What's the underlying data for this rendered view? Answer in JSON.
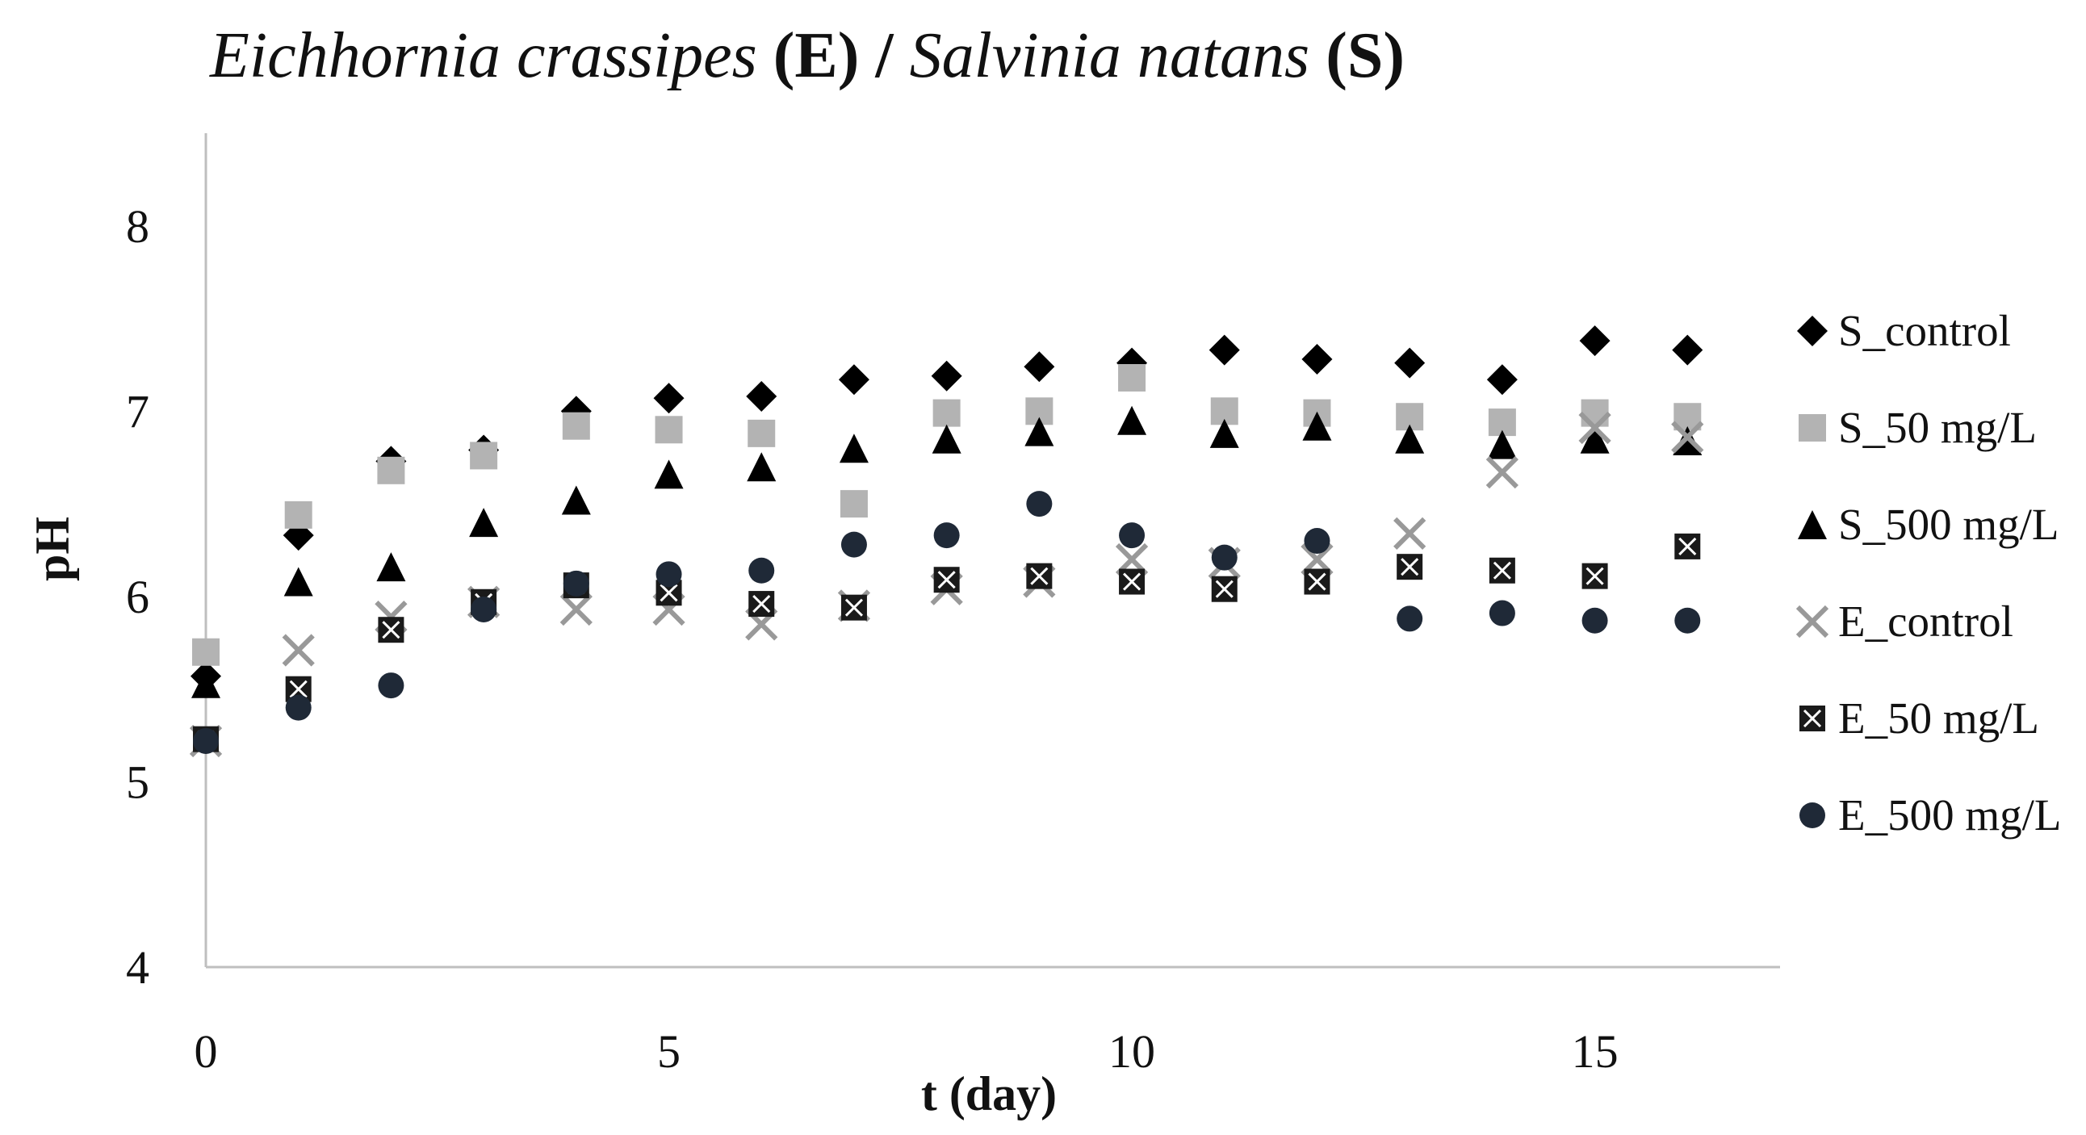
{
  "chart_data": {
    "type": "scatter",
    "title": {
      "segments": [
        {
          "text": "Eichhornia crassipes",
          "style": "italic"
        },
        {
          "text": " (E) / ",
          "style": "bold"
        },
        {
          "text": "Salvinia natans",
          "style": "italic"
        },
        {
          "text": " (S)",
          "style": "bold"
        }
      ]
    },
    "xlabel": "t (day)",
    "ylabel": "pH",
    "xlim": [
      0,
      17
    ],
    "ylim": [
      4,
      8.5
    ],
    "xticks": [
      0,
      5,
      10,
      15
    ],
    "yticks": [
      4,
      5,
      6,
      7,
      8
    ],
    "xtick_labels": [
      "0",
      "5",
      "10",
      "15"
    ],
    "ytick_labels": [
      "4",
      "5",
      "6",
      "7",
      "8"
    ],
    "grid": false,
    "legend_position": "right",
    "series": [
      {
        "name": "S_control",
        "marker": "diamond",
        "color": "#000000",
        "x": [
          0,
          1,
          2,
          3,
          4,
          5,
          6,
          7,
          8,
          9,
          10,
          11,
          12,
          13,
          14,
          15,
          16
        ],
        "y": [
          5.57,
          6.33,
          6.73,
          6.79,
          7.0,
          7.07,
          7.08,
          7.17,
          7.19,
          7.24,
          7.26,
          7.33,
          7.28,
          7.26,
          7.17,
          7.38,
          7.33
        ]
      },
      {
        "name": "S_50 mg/L",
        "marker": "square",
        "color": "#b3b3b3",
        "x": [
          0,
          1,
          2,
          3,
          4,
          5,
          6,
          7,
          8,
          9,
          10,
          11,
          12,
          13,
          14,
          15,
          16
        ],
        "y": [
          5.7,
          6.44,
          6.68,
          6.76,
          6.92,
          6.9,
          6.88,
          6.5,
          6.99,
          7.0,
          7.18,
          7.0,
          6.99,
          6.97,
          6.94,
          6.99,
          6.97
        ]
      },
      {
        "name": "S_500 mg/L",
        "marker": "triangle",
        "color": "#000000",
        "x": [
          0,
          1,
          2,
          3,
          4,
          5,
          6,
          7,
          8,
          9,
          10,
          11,
          12,
          13,
          14,
          15,
          16
        ],
        "y": [
          5.53,
          6.08,
          6.16,
          6.4,
          6.52,
          6.66,
          6.7,
          6.8,
          6.85,
          6.89,
          6.95,
          6.88,
          6.92,
          6.85,
          6.82,
          6.85,
          6.84
        ]
      },
      {
        "name": "E_control",
        "marker": "x",
        "color": "#999999",
        "x": [
          0,
          1,
          2,
          3,
          4,
          5,
          6,
          7,
          8,
          9,
          10,
          11,
          12,
          13,
          14,
          15,
          16
        ],
        "y": [
          5.22,
          5.71,
          5.89,
          5.97,
          5.93,
          5.93,
          5.85,
          5.95,
          6.04,
          6.08,
          6.2,
          6.18,
          6.2,
          6.34,
          6.67,
          6.91,
          6.86
        ]
      },
      {
        "name": "E_50 mg/L",
        "marker": "boxcross",
        "color": "#1a1a1a",
        "x": [
          0,
          1,
          2,
          3,
          4,
          5,
          6,
          7,
          8,
          9,
          10,
          11,
          12,
          13,
          14,
          15,
          16
        ],
        "y": [
          5.23,
          5.5,
          5.82,
          5.97,
          6.06,
          6.02,
          5.96,
          5.94,
          6.09,
          6.11,
          6.08,
          6.04,
          6.08,
          6.16,
          6.14,
          6.11,
          6.27
        ]
      },
      {
        "name": "E_500 mg/L",
        "marker": "circle",
        "color": "#1f2937",
        "x": [
          0,
          1,
          2,
          3,
          4,
          5,
          6,
          7,
          8,
          9,
          10,
          11,
          12,
          13,
          14,
          15,
          16
        ],
        "y": [
          5.22,
          5.4,
          5.52,
          5.93,
          6.07,
          6.12,
          6.14,
          6.28,
          6.33,
          6.5,
          6.33,
          6.21,
          6.3,
          5.88,
          5.91,
          5.87,
          5.87
        ]
      }
    ]
  }
}
